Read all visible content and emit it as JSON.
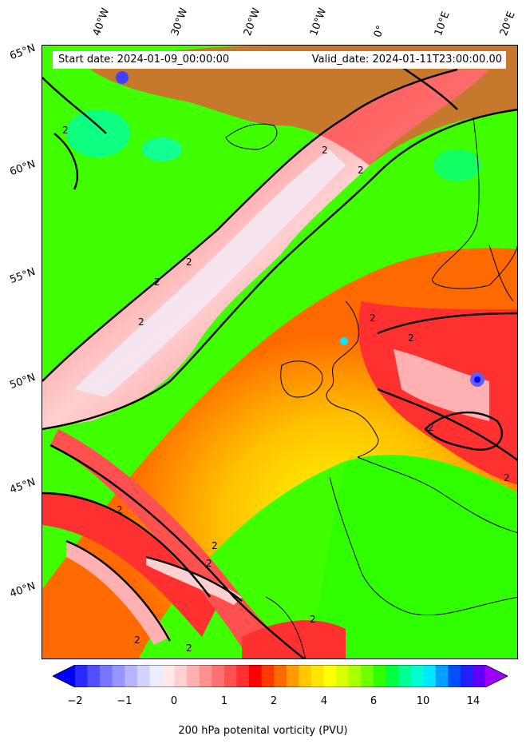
{
  "map": {
    "start_date": "Start date: 2024-01-09_00:00:00",
    "valid_date": "Valid_date: 2024-01-11T23:00:00.00",
    "longitude_labels": [
      "40°W",
      "30°W",
      "20°W",
      "10°W",
      "0°",
      "10°E",
      "20°E"
    ],
    "latitude_labels": [
      "65°N",
      "60°N",
      "55°N",
      "50°N",
      "45°N",
      "40°N"
    ],
    "contour_label": "2",
    "field": "200 hPa potential vorticity",
    "extent": {
      "lon_min": -43,
      "lon_max": 22,
      "lat_min": 36,
      "lat_max": 66
    }
  },
  "colorbar": {
    "label": "200 hPa potenital vorticity (PVU)",
    "ticks": [
      "−2",
      "−1",
      "0",
      "1",
      "2",
      "4",
      "6",
      "10",
      "14"
    ],
    "extend": "both",
    "colors": [
      "#0000ff",
      "#2a2aff",
      "#5050ff",
      "#7878ff",
      "#9696ff",
      "#b4b4ff",
      "#d2d2ff",
      "#ececff",
      "#ffe8e8",
      "#ffd0d0",
      "#ffb0b0",
      "#ff9090",
      "#ff7070",
      "#ff5050",
      "#ff3030",
      "#ff0000",
      "#ff3a00",
      "#ff6a00",
      "#ff9a00",
      "#ffc800",
      "#ffe600",
      "#ffff00",
      "#d8ff00",
      "#aaff00",
      "#70ff00",
      "#30ff00",
      "#00ff40",
      "#00ff90",
      "#00ffd0",
      "#00e8ff",
      "#00a0ff",
      "#0050ff",
      "#2020ff",
      "#6000ff",
      "#a000ff"
    ]
  }
}
